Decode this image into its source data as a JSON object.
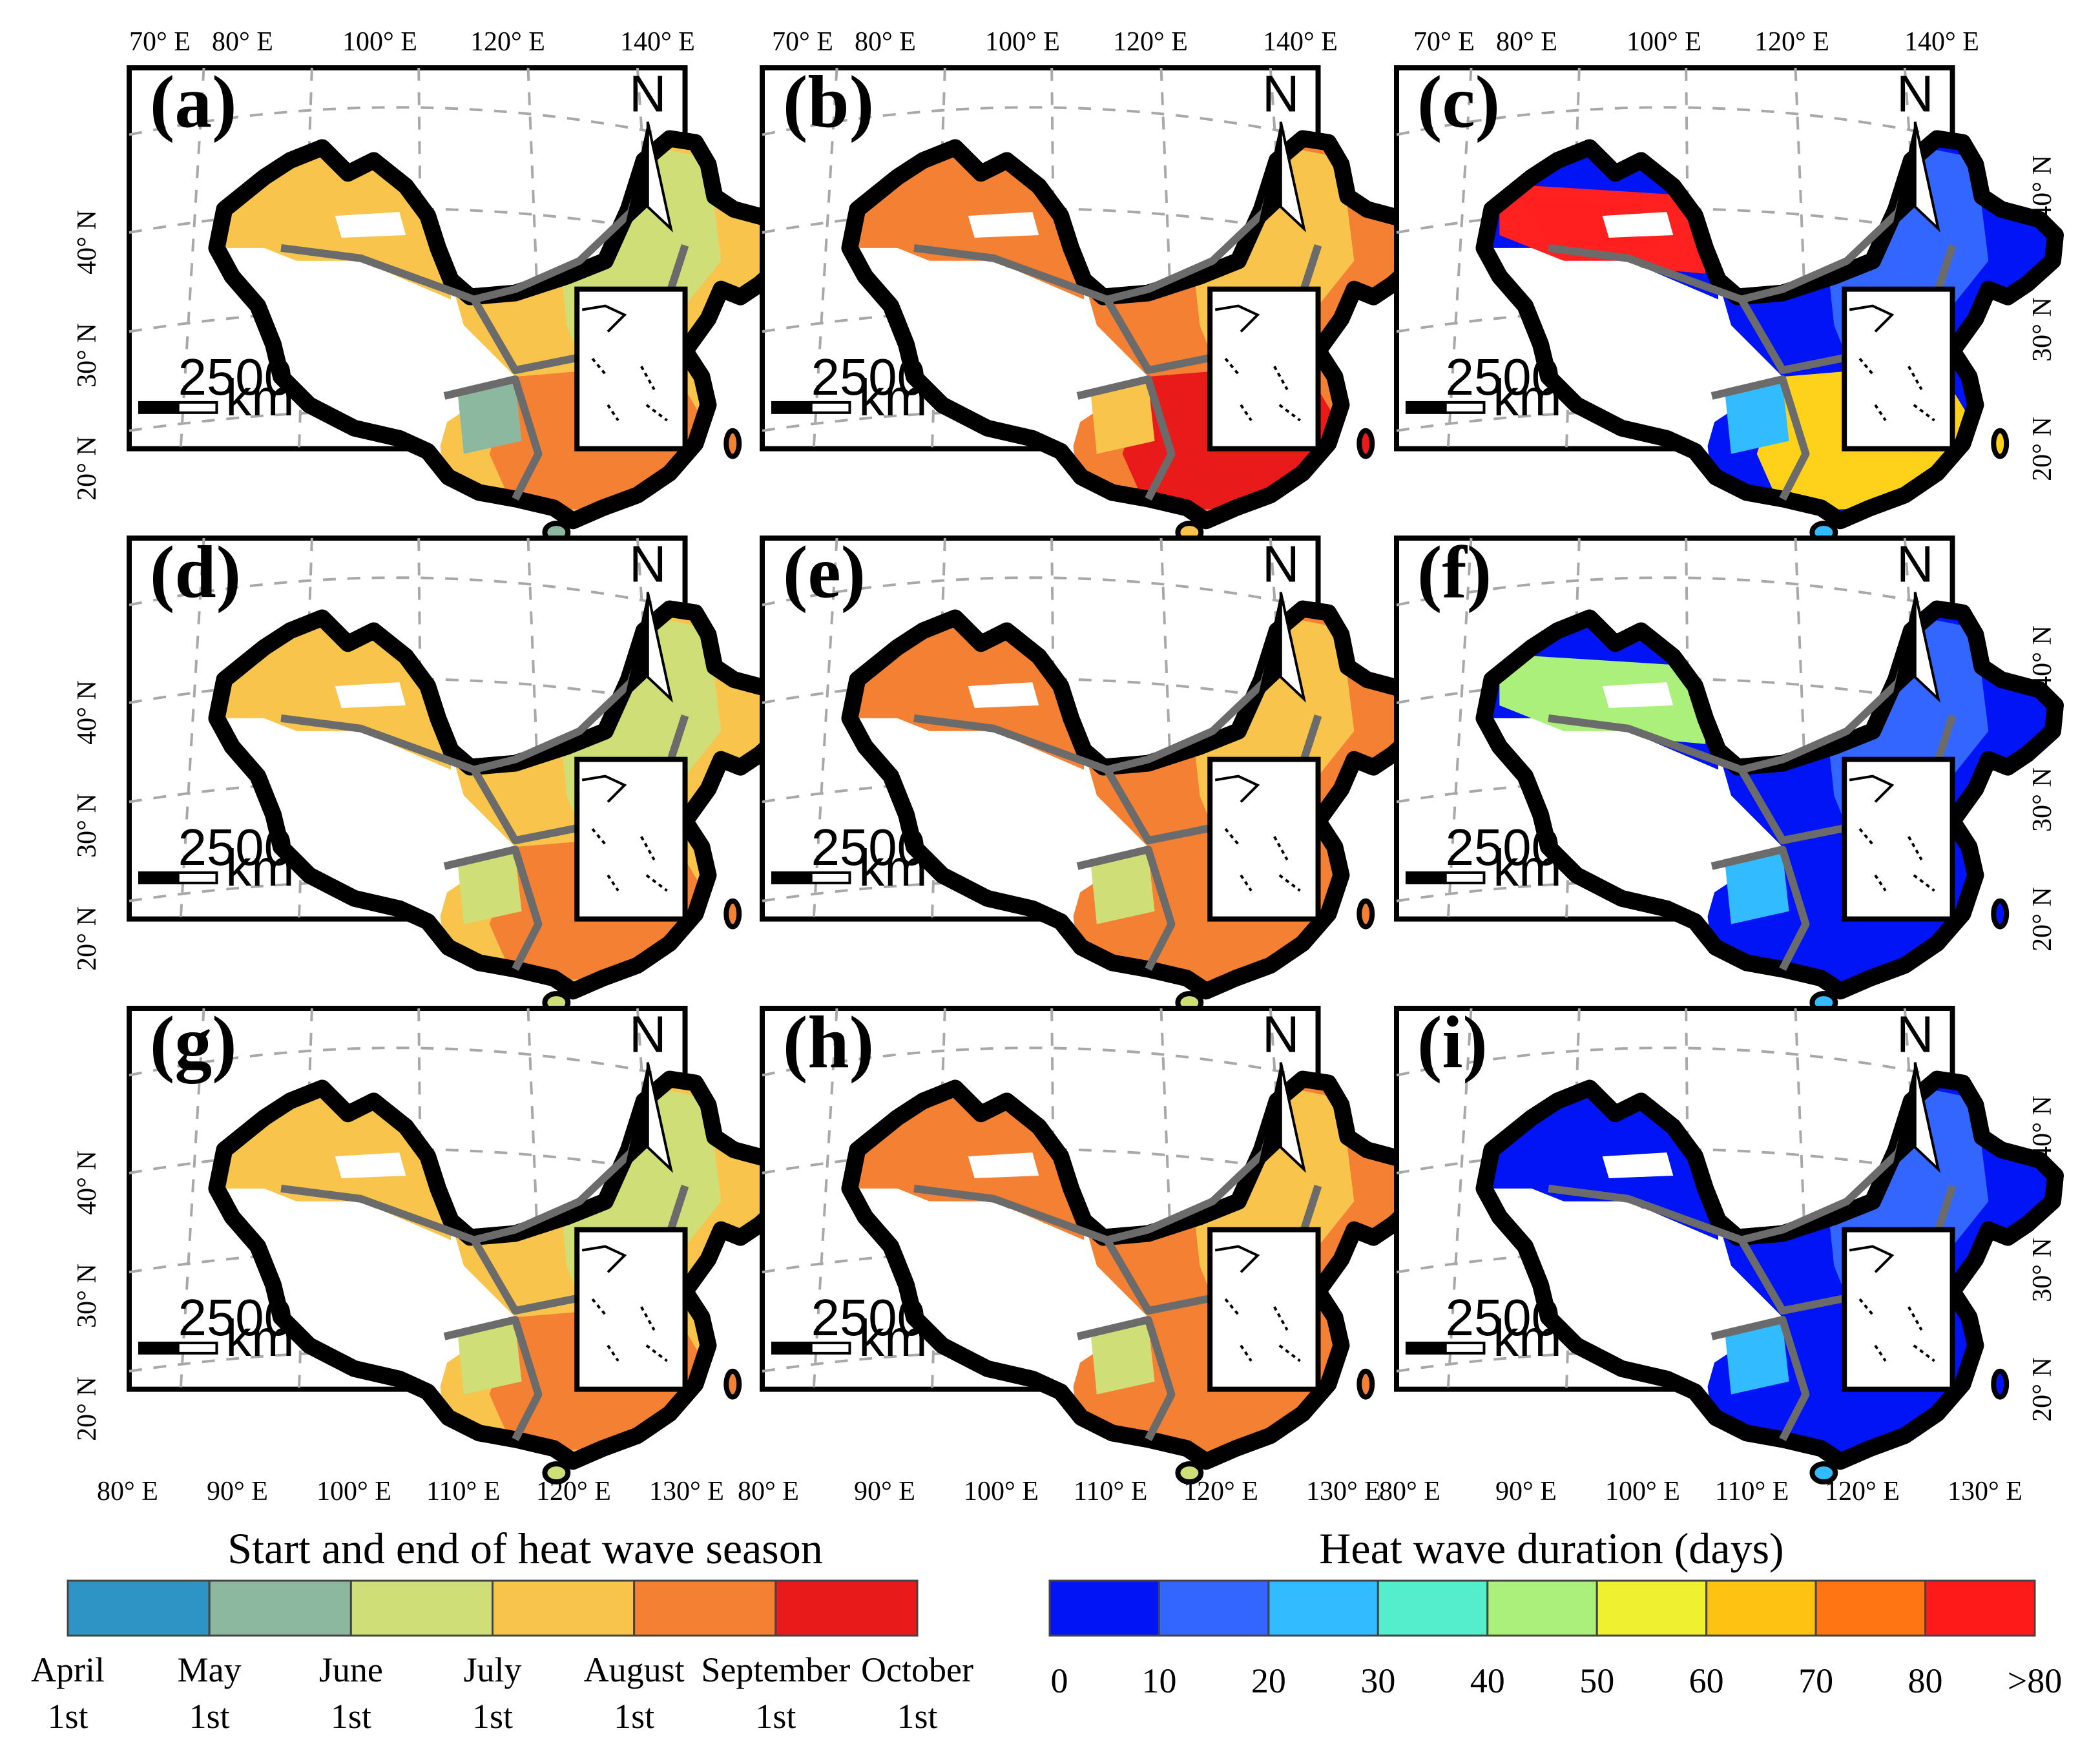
{
  "figure": {
    "top_lon_ticks": [
      "70° E",
      "80° E",
      "100° E",
      "120° E",
      "140° E"
    ],
    "bottom_lon_ticks": [
      "80° E",
      "90° E",
      "100° E",
      "110° E",
      "120° E",
      "130° E"
    ],
    "lat_ticks": [
      "40° N",
      "30° N",
      "20° N"
    ],
    "north_arrow_label": "N",
    "scale_bar": {
      "value": "2500",
      "unit": "km"
    }
  },
  "panels": [
    {
      "label": "(a)",
      "variable": "start",
      "colors": {
        "base": "#f8c44c",
        "patch1": "#d0de78",
        "patch2": "#f8c44c",
        "patch3": "#f48034",
        "accent": "#8db8a0"
      }
    },
    {
      "label": "(b)",
      "variable": "end",
      "colors": {
        "base": "#f48034",
        "patch1": "#f8c44c",
        "patch2": "#f48034",
        "patch3": "#e81a1a",
        "accent": "#f8c44c"
      }
    },
    {
      "label": "(c)",
      "variable": "duration",
      "colors": {
        "base": "#0014f5",
        "patch1": "#3366ff",
        "patch2": "#ff2020",
        "patch3": "#fed21a",
        "accent": "#33bbff"
      }
    },
    {
      "label": "(d)",
      "variable": "start",
      "colors": {
        "base": "#f8c44c",
        "patch1": "#d0de78",
        "patch2": "#f8c44c",
        "patch3": "#f48034",
        "accent": "#d0de78"
      }
    },
    {
      "label": "(e)",
      "variable": "end",
      "colors": {
        "base": "#f48034",
        "patch1": "#f8c44c",
        "patch2": "#f48034",
        "patch3": "#f48034",
        "accent": "#d0de78"
      }
    },
    {
      "label": "(f)",
      "variable": "duration",
      "colors": {
        "base": "#0014f5",
        "patch1": "#3366ff",
        "patch2": "#aaf07a",
        "patch3": "#0014f5",
        "accent": "#33bbff"
      }
    },
    {
      "label": "(g)",
      "variable": "start",
      "colors": {
        "base": "#f8c44c",
        "patch1": "#d0de78",
        "patch2": "#f8c44c",
        "patch3": "#f48034",
        "accent": "#d0de78"
      }
    },
    {
      "label": "(h)",
      "variable": "end",
      "colors": {
        "base": "#f48034",
        "patch1": "#f8c44c",
        "patch2": "#f48034",
        "patch3": "#f48034",
        "accent": "#d0de78"
      }
    },
    {
      "label": "(i)",
      "variable": "duration",
      "colors": {
        "base": "#0014f5",
        "patch1": "#3366ff",
        "patch2": "#0014f5",
        "patch3": "#0014f5",
        "accent": "#33bbff"
      }
    }
  ],
  "legend_season": {
    "title": "Start and end of heat wave season",
    "colors": [
      "#2e94c6",
      "#8db8a0",
      "#d0de78",
      "#f8c44c",
      "#f48034",
      "#e81a1a"
    ],
    "labels": [
      {
        "month": "April",
        "day": "1st"
      },
      {
        "month": "May",
        "day": "1st"
      },
      {
        "month": "June",
        "day": "1st"
      },
      {
        "month": "July",
        "day": "1st"
      },
      {
        "month": "August",
        "day": "1st"
      },
      {
        "month": "September",
        "day": "1st"
      },
      {
        "month": "October",
        "day": "1st"
      }
    ]
  },
  "legend_duration": {
    "title": "Heat wave duration (days)",
    "colors": [
      "#0014f5",
      "#3366ff",
      "#33bbff",
      "#55eecc",
      "#aaf07a",
      "#eef030",
      "#fec212",
      "#ff7514",
      "#ff1a1a"
    ],
    "labels": [
      "0",
      "10",
      "20",
      "30",
      "40",
      "50",
      "60",
      "70",
      "80",
      ">80"
    ]
  }
}
